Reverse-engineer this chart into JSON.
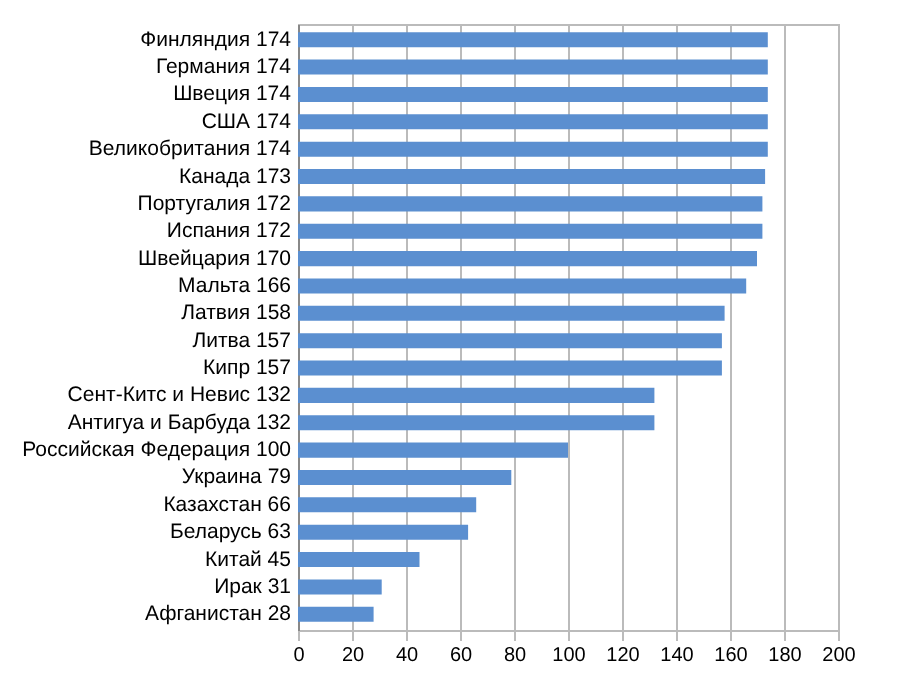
{
  "chart_data": {
    "type": "bar",
    "orientation": "horizontal",
    "categories": [
      "Финляндия 174",
      "Германия 174",
      "Швеция 174",
      "США 174",
      "Великобритания 174",
      "Канада 173",
      "Португалия 172",
      "Испания 172",
      "Швейцария 170",
      "Мальта 166",
      "Латвия 158",
      "Литва 157",
      "Кипр 157",
      "Сент-Китс и Невис 132",
      "Антигуа и Барбуда 132",
      "Российская Федерация 100",
      "Украина 79",
      "Казахстан 66",
      "Беларусь 63",
      "Китай 45",
      "Ирак 31",
      "Афганистан 28"
    ],
    "values": [
      174,
      174,
      174,
      174,
      174,
      173,
      172,
      172,
      170,
      166,
      158,
      157,
      157,
      132,
      132,
      100,
      79,
      66,
      63,
      45,
      31,
      28
    ],
    "color": "#5b8fd0",
    "xlim": [
      0,
      200
    ],
    "xticks": [
      0,
      20,
      40,
      60,
      80,
      100,
      120,
      140,
      160,
      180,
      200
    ],
    "grid": "x",
    "legend": false
  }
}
